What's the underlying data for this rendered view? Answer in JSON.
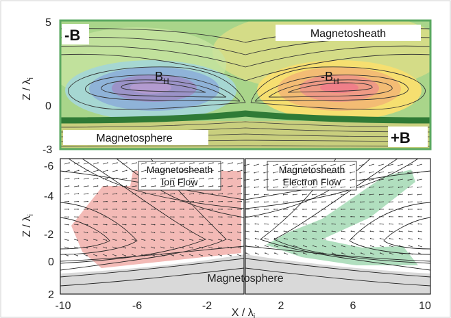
{
  "top_panel": {
    "corner_neg_b": "-B",
    "corner_pos_b": "+B",
    "magnetosheath_label": "Magnetosheath",
    "magnetosphere_label": "Magnetosphere",
    "bh_label_base": "B",
    "bh_label_sub": "H",
    "neg_bh_label_base": "-B",
    "neg_bh_label_sub": "H",
    "y_ticks": [
      "5",
      "0",
      "-3"
    ],
    "frame_color": "#5aa860",
    "current_sheet_color": "#2f7a36"
  },
  "bottom_panels": {
    "left_label_line1": "Magnetosheath",
    "left_label_line2": "Ion Flow",
    "right_label_line1": "Magnetosheath",
    "right_label_line2": "Electron Flow",
    "magnetosphere_label": "Magnetosphere",
    "y_ticks": [
      "-6",
      "-4",
      "-2",
      "0",
      "2"
    ],
    "x_ticks": [
      "-10",
      "-6",
      "-2",
      "2",
      "6",
      "10"
    ],
    "ion_flow_color": "#f2b3ae",
    "electron_flow_color": "#a9dcb8",
    "magnetosphere_color": "#d9d9d9"
  },
  "axes": {
    "z_label_base": "Z / λ",
    "z_label_sub": "i",
    "x_label_base": "X / λ",
    "x_label_sub": "i"
  }
}
